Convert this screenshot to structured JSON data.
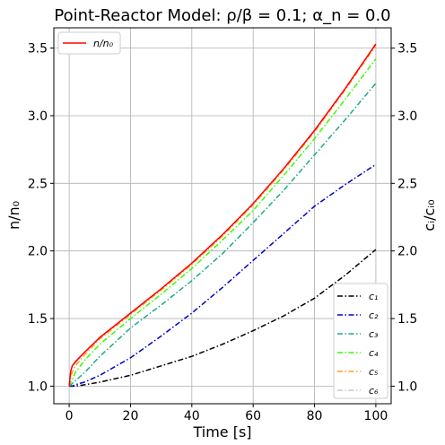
{
  "chart_data": {
    "type": "line",
    "title": "Point-Reactor Model: ρ/β = 0.1; α_n = 0.0",
    "xlabel": "Time [s]",
    "ylabel": "n/n₀",
    "ylabel_right": "cᵢ/cᵢ₀",
    "xlim": [
      -5,
      105
    ],
    "ylim": [
      0.87,
      3.65
    ],
    "xticks": [
      0,
      20,
      40,
      60,
      80,
      100
    ],
    "yticks": [
      1.0,
      1.5,
      2.0,
      2.5,
      3.0,
      3.5
    ],
    "grid": true,
    "legend_top_left": "n/n₀",
    "legend_bottom_right": [
      "c₁",
      "c₂",
      "c₃",
      "c₄",
      "c₅",
      "c₆"
    ],
    "x": [
      0,
      0.5,
      1,
      2,
      5,
      10,
      20,
      30,
      40,
      50,
      60,
      70,
      80,
      90,
      100
    ],
    "series": [
      {
        "name": "n/n₀",
        "color": "#ff0000",
        "dash": "solid",
        "values": [
          1.0,
          1.11,
          1.15,
          1.18,
          1.25,
          1.36,
          1.54,
          1.72,
          1.91,
          2.12,
          2.35,
          2.61,
          2.89,
          3.2,
          3.53
        ]
      },
      {
        "name": "c₁",
        "color": "#000000",
        "dash": "dashdot",
        "values": [
          1.0,
          1.0,
          1.0,
          1.0,
          1.01,
          1.03,
          1.08,
          1.15,
          1.22,
          1.31,
          1.41,
          1.52,
          1.65,
          1.82,
          2.01
        ]
      },
      {
        "name": "c₂",
        "color": "#0000cc",
        "dash": "dashdot",
        "values": [
          1.0,
          1.0,
          1.0,
          1.01,
          1.03,
          1.08,
          1.21,
          1.37,
          1.54,
          1.73,
          1.93,
          2.13,
          2.33,
          2.49,
          2.64
        ]
      },
      {
        "name": "c₃",
        "color": "#1aaa8a",
        "dash": "dashdot",
        "values": [
          1.0,
          1.01,
          1.02,
          1.04,
          1.1,
          1.22,
          1.43,
          1.6,
          1.78,
          1.98,
          2.21,
          2.45,
          2.71,
          2.97,
          3.24
        ]
      },
      {
        "name": "c₄",
        "color": "#33ff00",
        "dash": "dashdot",
        "values": [
          1.0,
          1.03,
          1.05,
          1.1,
          1.19,
          1.31,
          1.5,
          1.68,
          1.87,
          2.08,
          2.3,
          2.56,
          2.83,
          3.12,
          3.42
        ]
      },
      {
        "name": "c₅",
        "color": "#ff9f1a",
        "dash": "dashdot",
        "values": [
          1.0,
          1.07,
          1.1,
          1.15,
          1.23,
          1.35,
          1.53,
          1.71,
          1.9,
          2.11,
          2.34,
          2.6,
          2.88,
          3.19,
          3.52
        ]
      },
      {
        "name": "c₆",
        "color": "#c8c8c8",
        "dash": "dashdot",
        "values": [
          1.0,
          1.1,
          1.14,
          1.17,
          1.25,
          1.36,
          1.54,
          1.72,
          1.91,
          2.12,
          2.35,
          2.61,
          2.89,
          3.2,
          3.53
        ]
      }
    ]
  }
}
